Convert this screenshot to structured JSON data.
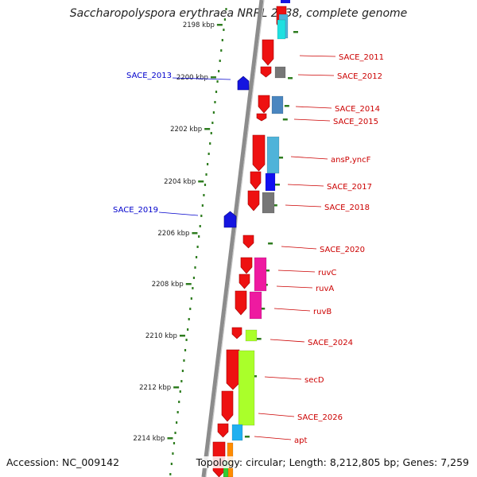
{
  "title": "Saccharopolyspora erythraea NRRL 2338, complete genome",
  "footer": {
    "accession": "Accession: NC_009142",
    "topology": "Topology: circular; Length: 8,212,805 bp; Genes: 7,259"
  },
  "colors": {
    "backbone": "#8c8c8c",
    "tick": "#2f7d20",
    "forward_gene": "#1515e0",
    "reverse_gene": "#ee1111",
    "reverse_label": "#cc0000",
    "forward_label": "#0000cc",
    "cog_palette": [
      "#4fb3d9",
      "#1fe0e0",
      "#777777",
      "#4a86c0",
      "#1010f0",
      "#ee1aa0",
      "#aaff2a",
      "#20b0f0",
      "#ff8c00",
      "#33cc33"
    ]
  },
  "kbp_ticks": [
    "2198 kbp",
    "2200 kbp",
    "2202 kbp",
    "2204 kbp",
    "2206 kbp",
    "2208 kbp",
    "2210 kbp",
    "2212 kbp",
    "2214 kbp"
  ],
  "reverse_labels": [
    "SACE_2011",
    "SACE_2012",
    "SACE_2014",
    "SACE_2015",
    "ansP,yncF",
    "SACE_2017",
    "SACE_2018",
    "SACE_2020",
    "ruvC",
    "ruvA",
    "ruvB",
    "SACE_2024",
    "secD",
    "SACE_2026",
    "apt"
  ],
  "forward_labels": [
    "SACE_2013",
    "SACE_2019"
  ]
}
